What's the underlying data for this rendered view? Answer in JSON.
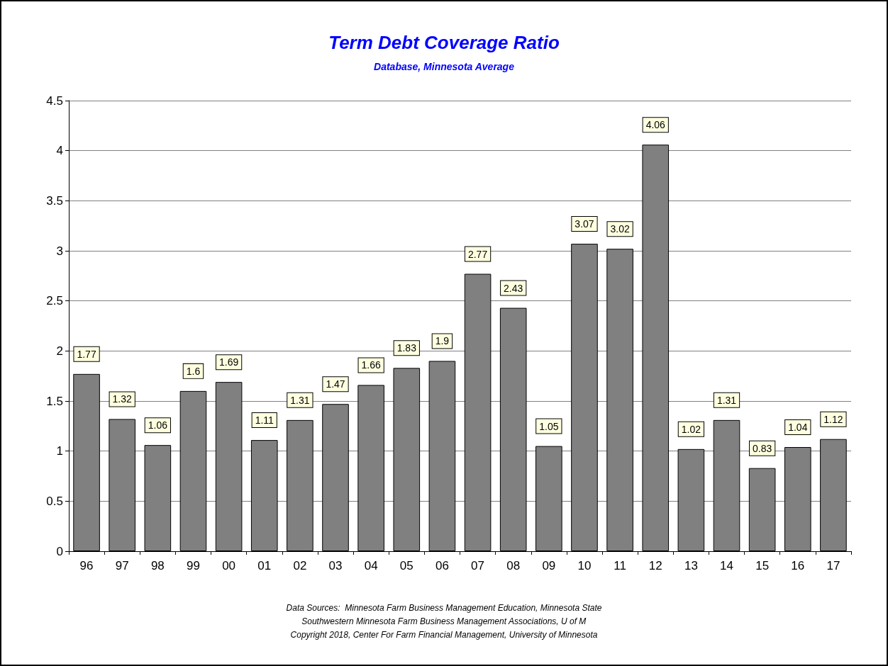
{
  "chart_data": {
    "type": "bar",
    "title": "Term Debt Coverage Ratio",
    "subtitle": "Database, Minnesota Average",
    "categories": [
      "96",
      "97",
      "98",
      "99",
      "00",
      "01",
      "02",
      "03",
      "04",
      "05",
      "06",
      "07",
      "08",
      "09",
      "10",
      "11",
      "12",
      "13",
      "14",
      "15",
      "16",
      "17"
    ],
    "values": [
      1.77,
      1.32,
      1.06,
      1.6,
      1.69,
      1.11,
      1.31,
      1.47,
      1.66,
      1.83,
      1.9,
      2.77,
      2.43,
      1.05,
      3.07,
      3.02,
      4.06,
      1.02,
      1.31,
      0.83,
      1.04,
      1.12
    ],
    "color": "#808080",
    "ylim": [
      0,
      4.5
    ],
    "yticks": [
      0,
      0.5,
      1,
      1.5,
      2,
      2.5,
      3,
      3.5,
      4,
      4.5
    ],
    "grid": "y",
    "data_labels": true,
    "annotations": [
      "Data Sources:  Minnesota Farm Business Management Education, Minnesota State",
      "Southwestern Minnesota Farm Business Management Associations, U of M",
      "Copyright 2018, Center For Farm Financial Management, University of Minnesota"
    ]
  }
}
